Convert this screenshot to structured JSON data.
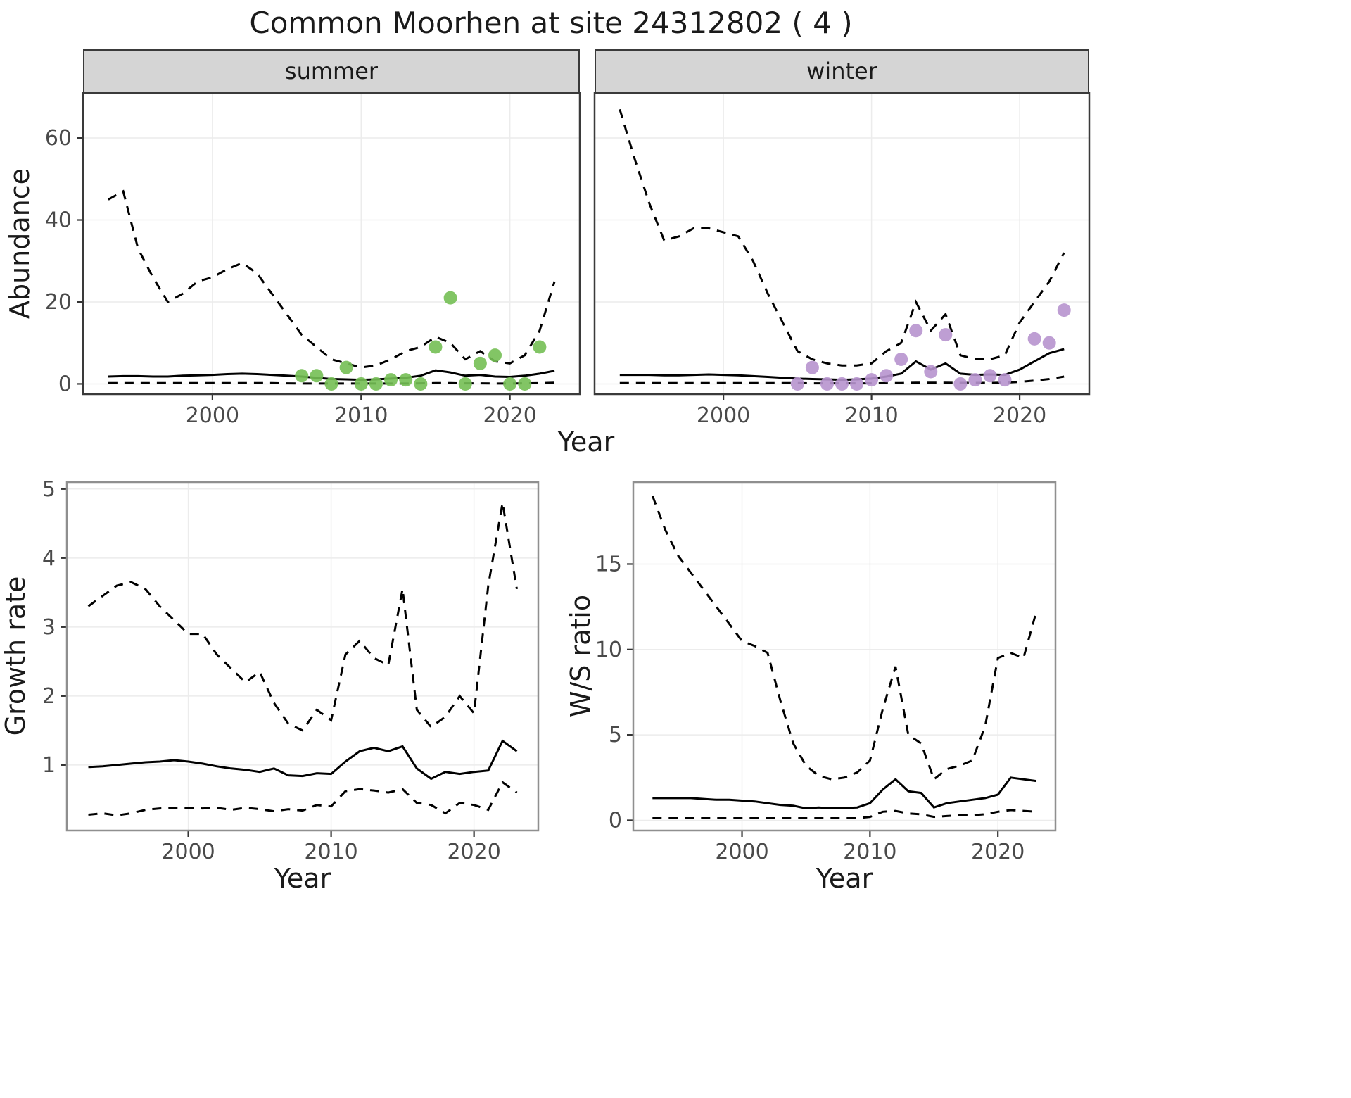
{
  "title": "Common Moorhen at site 24312802 ( 4 )",
  "facets": {
    "summer": "summer",
    "winter": "winter"
  },
  "axes": {
    "abundance": "Abundance",
    "year": "Year",
    "growth": "Growth rate",
    "ws": "W/S ratio"
  },
  "colors": {
    "summer_point": "#74bf54",
    "winter_point": "#b793ce",
    "line": "#000000",
    "strip_bg": "#d5d5d5",
    "grid": "#ececec",
    "panel_border_top": "#3a3a3a",
    "panel_border_bottom": "#8f8f8f"
  },
  "chart_data": [
    {
      "type": "line",
      "facet": "summer",
      "xlabel": "Year",
      "ylabel": "Abundance",
      "xlim": [
        1991.3,
        2024.7
      ],
      "ylim": [
        -2.5,
        71
      ],
      "xticks": [
        2000,
        2010,
        2020
      ],
      "yticks": [
        0,
        20,
        40,
        60
      ],
      "x": [
        1993,
        1994,
        1995,
        1996,
        1997,
        1998,
        1999,
        2000,
        2001,
        2002,
        2003,
        2004,
        2005,
        2006,
        2007,
        2008,
        2009,
        2010,
        2011,
        2012,
        2013,
        2014,
        2015,
        2016,
        2017,
        2018,
        2019,
        2020,
        2021,
        2022,
        2023
      ],
      "series": [
        {
          "name": "upper-ci",
          "style": "dashed",
          "values": [
            45,
            47,
            33,
            26,
            20,
            22,
            25,
            26,
            28,
            29.5,
            27,
            22,
            17,
            12,
            9,
            6,
            5,
            4,
            4.5,
            6,
            8,
            9,
            11.5,
            10,
            6,
            8,
            5.5,
            5,
            7,
            13,
            25
          ]
        },
        {
          "name": "mean",
          "style": "solid",
          "values": [
            1.8,
            1.9,
            1.9,
            1.8,
            1.8,
            2.0,
            2.1,
            2.2,
            2.4,
            2.5,
            2.4,
            2.2,
            2.0,
            1.8,
            1.5,
            1.2,
            1.1,
            1.0,
            1.1,
            1.3,
            1.5,
            2.0,
            3.3,
            2.8,
            2.0,
            2.2,
            1.8,
            1.7,
            2.0,
            2.5,
            3.2
          ]
        },
        {
          "name": "lower-ci",
          "style": "dashed",
          "values": [
            0.2,
            0.2,
            0.2,
            0.2,
            0.2,
            0.2,
            0.2,
            0.2,
            0.2,
            0.2,
            0.2,
            0.2,
            0.15,
            0.1,
            0.1,
            0.1,
            0.1,
            0.1,
            0.1,
            0.1,
            0.1,
            0.15,
            0.2,
            0.2,
            0.15,
            0.15,
            0.1,
            0.1,
            0.15,
            0.2,
            0.3
          ]
        }
      ],
      "points": {
        "name": "observed-summer",
        "color": "#74bf54",
        "x": [
          2006,
          2007,
          2008,
          2009,
          2010,
          2011,
          2012,
          2013,
          2014,
          2015,
          2016,
          2017,
          2018,
          2019,
          2020,
          2021,
          2022
        ],
        "y": [
          2,
          2,
          0,
          4,
          0,
          0,
          1,
          1,
          0,
          9,
          21,
          0,
          5,
          7,
          0,
          0,
          9
        ]
      }
    },
    {
      "type": "line",
      "facet": "winter",
      "xlabel": "Year",
      "ylabel": "Abundance",
      "xlim": [
        1991.3,
        2024.7
      ],
      "ylim": [
        -2.5,
        71
      ],
      "xticks": [
        2000,
        2010,
        2020
      ],
      "yticks": [
        0,
        20,
        40,
        60
      ],
      "x": [
        1993,
        1994,
        1995,
        1996,
        1997,
        1998,
        1999,
        2000,
        2001,
        2002,
        2003,
        2004,
        2005,
        2006,
        2007,
        2008,
        2009,
        2010,
        2011,
        2012,
        2013,
        2014,
        2015,
        2016,
        2017,
        2018,
        2019,
        2020,
        2021,
        2022,
        2023
      ],
      "series": [
        {
          "name": "upper-ci",
          "style": "dashed",
          "values": [
            67,
            55,
            44,
            35,
            36,
            38,
            38,
            37,
            36,
            30,
            22,
            15,
            8,
            6,
            5,
            4.5,
            4.5,
            5,
            8,
            10,
            20,
            13,
            17,
            7,
            6,
            6,
            7,
            15,
            20,
            25,
            32
          ]
        },
        {
          "name": "mean",
          "style": "solid",
          "values": [
            2.2,
            2.2,
            2.2,
            2.1,
            2.1,
            2.2,
            2.3,
            2.2,
            2.1,
            1.9,
            1.7,
            1.5,
            1.3,
            1.2,
            1.1,
            1.0,
            1.1,
            1.3,
            1.8,
            2.5,
            5.5,
            3.5,
            5.0,
            2.5,
            2.2,
            2.3,
            2.2,
            3.5,
            5.5,
            7.5,
            8.5
          ]
        },
        {
          "name": "lower-ci",
          "style": "dashed",
          "values": [
            0.2,
            0.2,
            0.2,
            0.2,
            0.2,
            0.2,
            0.2,
            0.2,
            0.2,
            0.2,
            0.2,
            0.2,
            0.2,
            0.15,
            0.15,
            0.15,
            0.15,
            0.15,
            0.2,
            0.2,
            0.3,
            0.3,
            0.3,
            0.25,
            0.25,
            0.25,
            0.3,
            0.5,
            0.8,
            1.2,
            1.8
          ]
        }
      ],
      "points": {
        "name": "observed-winter",
        "color": "#b793ce",
        "x": [
          2005,
          2006,
          2007,
          2008,
          2009,
          2010,
          2011,
          2012,
          2013,
          2014,
          2015,
          2016,
          2017,
          2018,
          2019,
          2021,
          2022,
          2023
        ],
        "y": [
          0,
          4,
          0,
          0,
          0,
          1,
          2,
          6,
          13,
          3,
          12,
          0,
          1,
          2,
          1,
          11,
          10,
          18
        ]
      }
    },
    {
      "type": "line",
      "facet": "growth-rate",
      "xlabel": "Year",
      "ylabel": "Growth rate",
      "xlim": [
        1991.5,
        2024.5
      ],
      "ylim": [
        0.05,
        5.1
      ],
      "xticks": [
        2000,
        2010,
        2020
      ],
      "yticks": [
        1,
        2,
        3,
        4,
        5
      ],
      "x": [
        1993,
        1994,
        1995,
        1996,
        1997,
        1998,
        1999,
        2000,
        2001,
        2002,
        2003,
        2004,
        2005,
        2006,
        2007,
        2008,
        2009,
        2010,
        2011,
        2012,
        2013,
        2014,
        2015,
        2016,
        2017,
        2018,
        2019,
        2020,
        2021,
        2022,
        2023
      ],
      "series": [
        {
          "name": "upper-ci",
          "style": "dashed",
          "values": [
            3.3,
            3.45,
            3.6,
            3.65,
            3.55,
            3.3,
            3.1,
            2.9,
            2.9,
            2.6,
            2.4,
            2.2,
            2.35,
            1.9,
            1.6,
            1.5,
            1.8,
            1.65,
            2.6,
            2.8,
            2.55,
            2.45,
            3.55,
            1.8,
            1.55,
            1.7,
            2.0,
            1.75,
            3.6,
            4.8,
            3.55
          ]
        },
        {
          "name": "mean",
          "style": "solid",
          "values": [
            0.97,
            0.98,
            1.0,
            1.02,
            1.04,
            1.05,
            1.07,
            1.05,
            1.02,
            0.98,
            0.95,
            0.93,
            0.9,
            0.95,
            0.85,
            0.84,
            0.88,
            0.87,
            1.05,
            1.2,
            1.25,
            1.2,
            1.27,
            0.95,
            0.8,
            0.9,
            0.87,
            0.9,
            0.92,
            1.35,
            1.2
          ]
        },
        {
          "name": "lower-ci",
          "style": "dashed",
          "values": [
            0.28,
            0.3,
            0.27,
            0.3,
            0.35,
            0.37,
            0.38,
            0.38,
            0.37,
            0.38,
            0.35,
            0.38,
            0.36,
            0.33,
            0.36,
            0.34,
            0.42,
            0.4,
            0.62,
            0.65,
            0.63,
            0.6,
            0.65,
            0.45,
            0.42,
            0.3,
            0.45,
            0.42,
            0.35,
            0.75,
            0.6
          ]
        }
      ]
    },
    {
      "type": "line",
      "facet": "ws-ratio",
      "xlabel": "Year",
      "ylabel": "W/S ratio",
      "xlim": [
        1991.5,
        2024.5
      ],
      "ylim": [
        -0.6,
        19.8
      ],
      "xticks": [
        2000,
        2010,
        2020
      ],
      "yticks": [
        0,
        5,
        10,
        15
      ],
      "x": [
        1993,
        1994,
        1995,
        1996,
        1997,
        1998,
        1999,
        2000,
        2001,
        2002,
        2003,
        2004,
        2005,
        2006,
        2007,
        2008,
        2009,
        2010,
        2011,
        2012,
        2013,
        2014,
        2015,
        2016,
        2017,
        2018,
        2019,
        2020,
        2021,
        2022,
        2023
      ],
      "series": [
        {
          "name": "upper-ci",
          "style": "dashed",
          "values": [
            19,
            17,
            15.5,
            14.5,
            13.5,
            12.5,
            11.5,
            10.5,
            10.2,
            9.8,
            7,
            4.5,
            3.2,
            2.6,
            2.4,
            2.5,
            2.8,
            3.5,
            6.5,
            9,
            5,
            4.5,
            2.4,
            3.0,
            3.2,
            3.5,
            5.5,
            9.5,
            9.8,
            9.5,
            12.2
          ]
        },
        {
          "name": "mean",
          "style": "solid",
          "values": [
            1.3,
            1.3,
            1.3,
            1.3,
            1.25,
            1.2,
            1.2,
            1.15,
            1.1,
            1.0,
            0.9,
            0.85,
            0.7,
            0.75,
            0.7,
            0.72,
            0.75,
            1.0,
            1.8,
            2.4,
            1.7,
            1.6,
            0.75,
            1.0,
            1.1,
            1.2,
            1.3,
            1.5,
            2.5,
            2.4,
            2.3
          ]
        },
        {
          "name": "lower-ci",
          "style": "dashed",
          "values": [
            0.12,
            0.12,
            0.12,
            0.12,
            0.12,
            0.12,
            0.12,
            0.12,
            0.12,
            0.12,
            0.12,
            0.12,
            0.12,
            0.12,
            0.12,
            0.12,
            0.12,
            0.2,
            0.5,
            0.55,
            0.4,
            0.35,
            0.2,
            0.25,
            0.3,
            0.3,
            0.35,
            0.5,
            0.6,
            0.55,
            0.5
          ]
        }
      ]
    }
  ]
}
